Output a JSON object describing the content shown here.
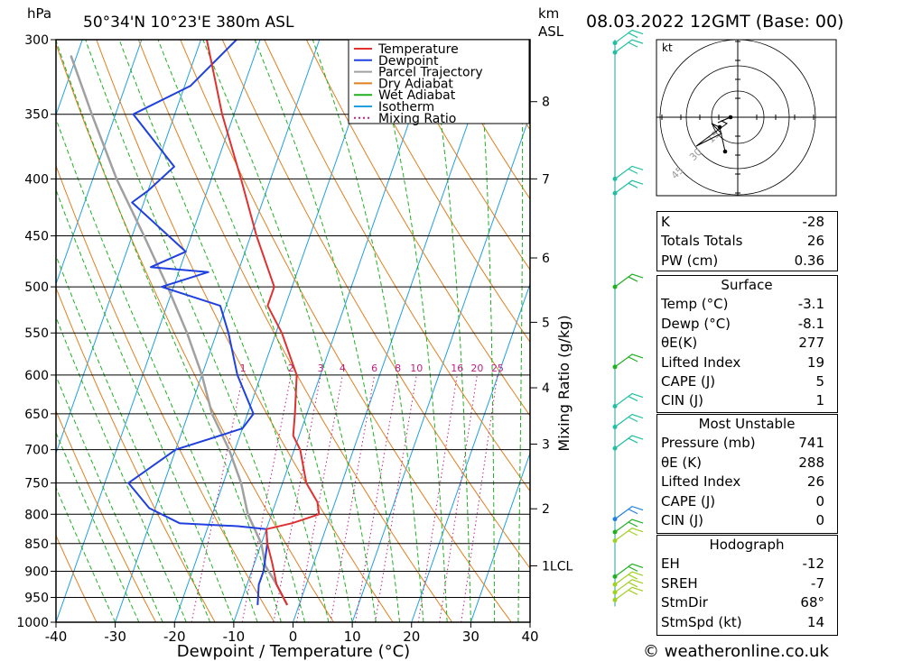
{
  "header": {
    "hpa_label": "hPa",
    "location": "50°34'N  10°23'E  380m  ASL",
    "km_label": "km",
    "asl_label": "ASL",
    "datetime": "08.03.2022  12GMT  (Base: 00)"
  },
  "footer": {
    "copyright": "© weatheronline.co.uk"
  },
  "chart_data": {
    "type": "line",
    "title": "",
    "xlabel": "Dewpoint / Temperature (°C)",
    "ylabel": "hPa",
    "right_axis_label": "Mixing Ratio (g/kg)",
    "xlim": [
      -40,
      40
    ],
    "ylim": [
      1000,
      300
    ],
    "pressure_ticks": [
      300,
      350,
      400,
      450,
      500,
      550,
      600,
      650,
      700,
      750,
      800,
      850,
      900,
      950,
      1000
    ],
    "temp_ticks": [
      -40,
      -30,
      -20,
      -10,
      0,
      10,
      20,
      30,
      40
    ],
    "km_ticks": [
      {
        "label": "1LCL",
        "p": 890
      },
      {
        "label": "2",
        "p": 791
      },
      {
        "label": "3",
        "p": 692
      },
      {
        "label": "4",
        "p": 616
      },
      {
        "label": "5",
        "p": 538
      },
      {
        "label": "6",
        "p": 471
      },
      {
        "label": "7",
        "p": 400
      },
      {
        "label": "8",
        "p": 341
      }
    ],
    "mixing_ratio_labels": [
      "1",
      "2",
      "3",
      "4",
      "6",
      "8",
      "10",
      "16",
      "20",
      "25"
    ],
    "legend": {
      "placement": "top-center",
      "items": [
        {
          "label": "Temperature",
          "color": "#e03030",
          "style": "solid"
        },
        {
          "label": "Dewpoint",
          "color": "#2040e0",
          "style": "solid"
        },
        {
          "label": "Parcel Trajectory",
          "color": "#a0a0a0",
          "style": "solid"
        },
        {
          "label": "Dry Adiabat",
          "color": "#e08020",
          "style": "solid"
        },
        {
          "label": "Wet Adiabat",
          "color": "#20b020",
          "style": "solid"
        },
        {
          "label": "Isotherm",
          "color": "#20a0e0",
          "style": "solid"
        },
        {
          "label": "Mixing Ratio",
          "color": "#c02080",
          "style": "dotted"
        }
      ]
    },
    "series": [
      {
        "name": "Temperature",
        "color": "#e03030",
        "points": [
          {
            "p": 965,
            "t": -2
          },
          {
            "p": 925,
            "t": -5
          },
          {
            "p": 885,
            "t": -7
          },
          {
            "p": 850,
            "t": -9
          },
          {
            "p": 825,
            "t": -10
          },
          {
            "p": 815,
            "t": -6
          },
          {
            "p": 800,
            "t": -2
          },
          {
            "p": 780,
            "t": -3
          },
          {
            "p": 750,
            "t": -6
          },
          {
            "p": 700,
            "t": -9
          },
          {
            "p": 680,
            "t": -11
          },
          {
            "p": 650,
            "t": -12
          },
          {
            "p": 600,
            "t": -14
          },
          {
            "p": 550,
            "t": -19
          },
          {
            "p": 520,
            "t": -23
          },
          {
            "p": 500,
            "t": -23
          },
          {
            "p": 450,
            "t": -29
          },
          {
            "p": 400,
            "t": -35
          },
          {
            "p": 350,
            "t": -42
          },
          {
            "p": 300,
            "t": -49
          }
        ]
      },
      {
        "name": "Dewpoint",
        "color": "#2040e0",
        "points": [
          {
            "p": 965,
            "t": -7
          },
          {
            "p": 925,
            "t": -8
          },
          {
            "p": 900,
            "t": -8
          },
          {
            "p": 850,
            "t": -9
          },
          {
            "p": 825,
            "t": -10
          },
          {
            "p": 820,
            "t": -15
          },
          {
            "p": 815,
            "t": -25
          },
          {
            "p": 790,
            "t": -31
          },
          {
            "p": 750,
            "t": -36
          },
          {
            "p": 700,
            "t": -30
          },
          {
            "p": 670,
            "t": -20
          },
          {
            "p": 650,
            "t": -19
          },
          {
            "p": 600,
            "t": -24
          },
          {
            "p": 550,
            "t": -28
          },
          {
            "p": 520,
            "t": -31
          },
          {
            "p": 500,
            "t": -42
          },
          {
            "p": 485,
            "t": -35
          },
          {
            "p": 480,
            "t": -45
          },
          {
            "p": 465,
            "t": -40
          },
          {
            "p": 420,
            "t": -52
          },
          {
            "p": 410,
            "t": -50
          },
          {
            "p": 390,
            "t": -47
          },
          {
            "p": 350,
            "t": -57
          },
          {
            "p": 330,
            "t": -49
          },
          {
            "p": 300,
            "t": -44
          }
        ]
      },
      {
        "name": "Parcel Trajectory",
        "color": "#a0a0a0",
        "points": [
          {
            "p": 965,
            "t": -2
          },
          {
            "p": 925,
            "t": -5
          },
          {
            "p": 890,
            "t": -8
          },
          {
            "p": 850,
            "t": -10
          },
          {
            "p": 800,
            "t": -14
          },
          {
            "p": 750,
            "t": -17
          },
          {
            "p": 700,
            "t": -21
          },
          {
            "p": 650,
            "t": -26
          },
          {
            "p": 600,
            "t": -30
          },
          {
            "p": 550,
            "t": -35
          },
          {
            "p": 500,
            "t": -41
          },
          {
            "p": 450,
            "t": -48
          },
          {
            "p": 400,
            "t": -56
          },
          {
            "p": 350,
            "t": -64
          },
          {
            "p": 310,
            "t": -71
          }
        ]
      }
    ],
    "wind_barbs_pressures": [
      302,
      308,
      400,
      412,
      500,
      590,
      640,
      668,
      698,
      808,
      830,
      845,
      910,
      925,
      940,
      955
    ],
    "hodograph": {
      "unit_label": "kt",
      "ring_labels": [
        "15",
        "30",
        "45"
      ]
    }
  },
  "indices": {
    "top": [
      {
        "label": "K",
        "value": "-28"
      },
      {
        "label": "Totals Totals",
        "value": "26"
      },
      {
        "label": "PW (cm)",
        "value": "0.36"
      }
    ],
    "surface": {
      "title": "Surface",
      "rows": [
        {
          "label": "Temp (°C)",
          "value": "-3.1"
        },
        {
          "label": "Dewp (°C)",
          "value": "-8.1"
        },
        {
          "label": "θE(K)",
          "value": "277"
        },
        {
          "label": "Lifted Index",
          "value": "19"
        },
        {
          "label": "CAPE (J)",
          "value": "5"
        },
        {
          "label": "CIN (J)",
          "value": "1"
        }
      ]
    },
    "most_unstable": {
      "title": "Most Unstable",
      "rows": [
        {
          "label": "Pressure (mb)",
          "value": "741"
        },
        {
          "label": "θE (K)",
          "value": "288"
        },
        {
          "label": "Lifted Index",
          "value": "26"
        },
        {
          "label": "CAPE (J)",
          "value": "0"
        },
        {
          "label": "CIN (J)",
          "value": "0"
        }
      ]
    },
    "hodograph": {
      "title": "Hodograph",
      "rows": [
        {
          "label": "EH",
          "value": "-12"
        },
        {
          "label": "SREH",
          "value": "-7"
        },
        {
          "label": "StmDir",
          "value": "68°"
        },
        {
          "label": "StmSpd (kt)",
          "value": "14"
        }
      ]
    }
  }
}
